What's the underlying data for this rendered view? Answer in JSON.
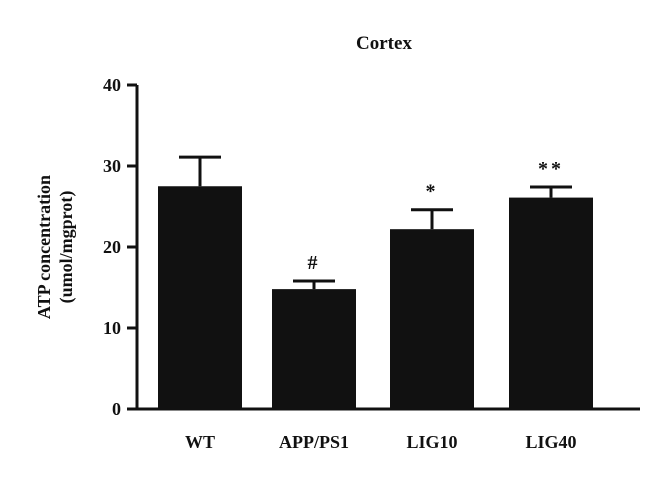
{
  "chart_data": {
    "type": "bar",
    "title": "Cortex",
    "ylabel_line1": "ATP concentration",
    "ylabel_line2": "(umol/mgprot)",
    "xlabel": "",
    "categories": [
      "WT",
      "APP/PS1",
      "LIG10",
      "LIG40"
    ],
    "values": [
      27.5,
      14.8,
      22.2,
      26.1
    ],
    "errors": [
      3.6,
      1.0,
      2.4,
      1.3
    ],
    "annotations": [
      "",
      "#",
      "*",
      "**"
    ],
    "ylim": [
      0,
      40
    ],
    "yticks": [
      0,
      10,
      20,
      30,
      40
    ],
    "grid": false,
    "bar_color": "#111111"
  }
}
